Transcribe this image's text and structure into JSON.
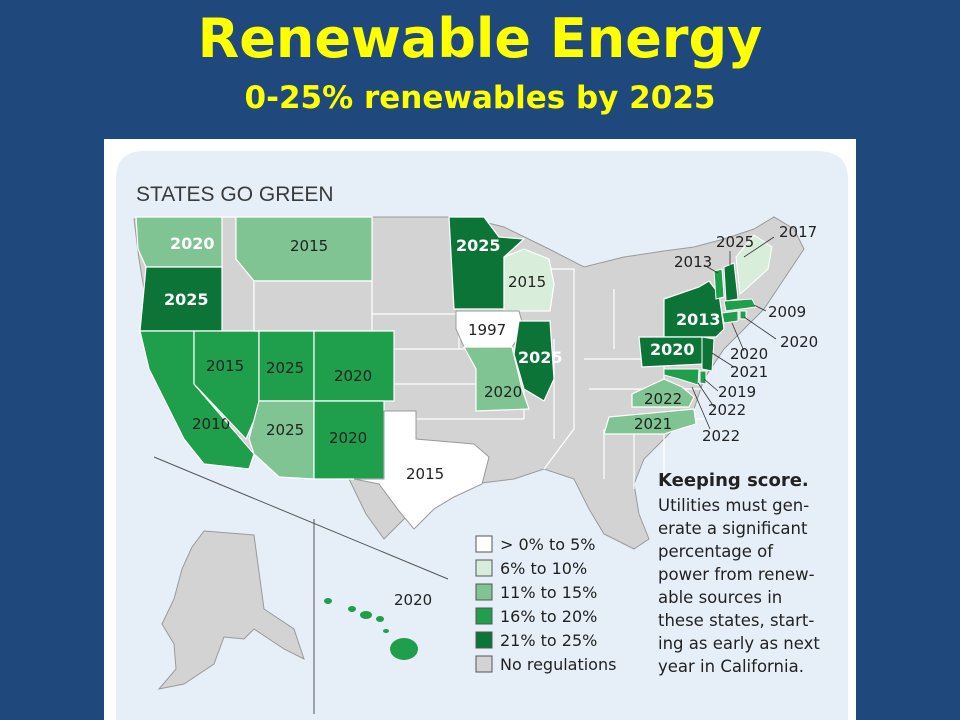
{
  "slide": {
    "title": "Renewable Energy",
    "subtitle": "0-25% renewables by 2025"
  },
  "map": {
    "heading": "STATES GO GREEN",
    "colors": {
      "background": "#e6eff8",
      "none": "#d3d3d3",
      "tier1": "#ffffff",
      "tier2": "#d8eedb",
      "tier3": "#7fc492",
      "tier4": "#1f9e4c",
      "tier5": "#0b7436",
      "border": "#9a9a9a"
    },
    "states": [
      {
        "name": "Washington",
        "year": "2020",
        "tier": "tier3"
      },
      {
        "name": "Oregon",
        "year": "2025",
        "tier": "tier5"
      },
      {
        "name": "California",
        "year": "2010",
        "tier": "tier4"
      },
      {
        "name": "Nevada",
        "year": "2015",
        "tier": "tier4"
      },
      {
        "name": "Montana",
        "year": "2015",
        "tier": "tier3"
      },
      {
        "name": "Utah",
        "year": "2025",
        "tier": "tier4"
      },
      {
        "name": "Colorado",
        "year": "2020",
        "tier": "tier4"
      },
      {
        "name": "Arizona",
        "year": "2025",
        "tier": "tier3"
      },
      {
        "name": "New Mexico",
        "year": "2020",
        "tier": "tier4"
      },
      {
        "name": "Texas",
        "year": "2015",
        "tier": "tier1"
      },
      {
        "name": "Minnesota",
        "year": "2025",
        "tier": "tier5"
      },
      {
        "name": "Iowa",
        "year": "1997",
        "tier": "tier1"
      },
      {
        "name": "Wisconsin",
        "year": "2015",
        "tier": "tier2"
      },
      {
        "name": "Illinois",
        "year": "2025",
        "tier": "tier5"
      },
      {
        "name": "Missouri",
        "year": "2020",
        "tier": "tier3"
      },
      {
        "name": "New York",
        "year": "2013",
        "tier": "tier5"
      },
      {
        "name": "Pennsylvania",
        "year": "2020",
        "tier": "tier5"
      },
      {
        "name": "Virginia",
        "year": "2022",
        "tier": "tier3"
      },
      {
        "name": "North Carolina",
        "year": "2021",
        "tier": "tier3"
      },
      {
        "name": "Hawaii",
        "year": "2020",
        "tier": "tier4"
      },
      {
        "name": "Vermont",
        "year": "2013",
        "tier": "tier4"
      },
      {
        "name": "New Hampshire",
        "year": "2025",
        "tier": "tier5"
      },
      {
        "name": "Maine",
        "year": "2017",
        "tier": "tier2"
      },
      {
        "name": "Massachusetts",
        "year": "2009",
        "tier": "tier4"
      },
      {
        "name": "Rhode Island",
        "year": "2020",
        "tier": "tier4"
      },
      {
        "name": "Connecticut",
        "year": "2020",
        "tier": "tier4"
      },
      {
        "name": "New Jersey",
        "year": "2021",
        "tier": "tier5"
      },
      {
        "name": "Delaware",
        "year": "2019",
        "tier": "tier4"
      },
      {
        "name": "Maryland",
        "year": "2022",
        "tier": "tier4"
      },
      {
        "name": "District of Columbia",
        "year": "2022",
        "tier": "tier4"
      }
    ],
    "legend": [
      {
        "label": "> 0% to 5%",
        "color": "#ffffff"
      },
      {
        "label": "6% to 10%",
        "color": "#d8eedb"
      },
      {
        "label": "11% to 15%",
        "color": "#7fc492"
      },
      {
        "label": "16% to 20%",
        "color": "#1f9e4c"
      },
      {
        "label": "21% to 25%",
        "color": "#0b7436"
      },
      {
        "label": "No regulations",
        "color": "#d3d3d3"
      }
    ],
    "caption": {
      "title": "Keeping score.",
      "lines": [
        "Utilities must gen-",
        "erate a significant",
        "percentage    of",
        "power from renew-",
        "able sources in",
        "these states, start-",
        "ing as early as next",
        "year in California."
      ]
    }
  }
}
